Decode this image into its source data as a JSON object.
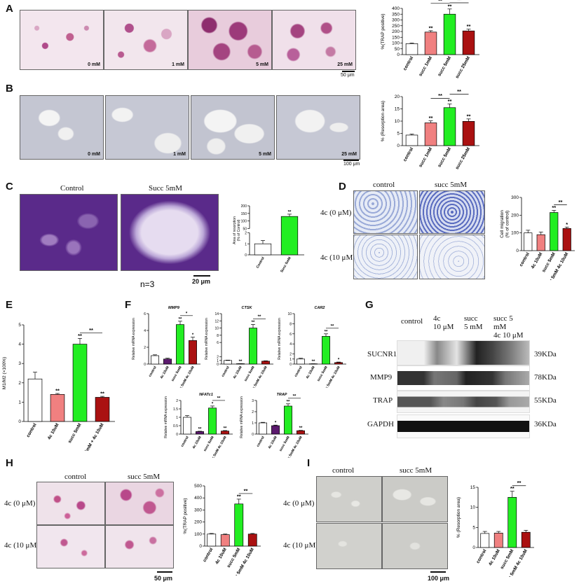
{
  "panels": {
    "A": {
      "label": "A",
      "images": [
        "0 mM",
        "1 mM",
        "5 mM",
        "25 mM"
      ],
      "scalebar": "50 μm"
    },
    "B": {
      "label": "B",
      "images": [
        "0 mM",
        "1 mM",
        "5 mM",
        "25 mM"
      ],
      "scalebar": "100 μm"
    },
    "C": {
      "label": "C",
      "headers": [
        "Control",
        "Succ 5mM"
      ],
      "scalebar": "20 μm",
      "note": "n=3"
    },
    "D": {
      "label": "D",
      "headers": [
        "control",
        "succ 5mM"
      ],
      "rows": [
        "4c (0 μM)",
        "4c (10 μM)"
      ]
    },
    "E": {
      "label": "E"
    },
    "F": {
      "label": "F"
    },
    "G": {
      "label": "G",
      "headers": [
        "control",
        "4c\n10 μM",
        "succ\n5 mM",
        "succ 5\nmM\n4c 10 μM"
      ],
      "bands": [
        {
          "name": "SUCNR1",
          "kda": "39KDa"
        },
        {
          "name": "MMP9",
          "kda": "78KDa"
        },
        {
          "name": "TRAP",
          "kda": "55KDa"
        },
        {
          "name": "GAPDH",
          "kda": "36KDa"
        }
      ]
    },
    "H": {
      "label": "H",
      "headers": [
        "control",
        "succ 5mM"
      ],
      "rows": [
        "4c (0 μM)",
        "4c (10 μM)"
      ],
      "scalebar": "50 μm"
    },
    "I": {
      "label": "I",
      "headers": [
        "control",
        "succ 5mM"
      ],
      "rows": [
        "4c (0 μM)",
        "4c (10 μM)"
      ],
      "scalebar": "100 μm"
    }
  },
  "chart_data": [
    {
      "id": "A",
      "type": "bar",
      "ylabel": "%(TRAP positive)",
      "ylim": [
        0,
        400
      ],
      "yticks": [
        0,
        50,
        100,
        150,
        200,
        250,
        300,
        350,
        400
      ],
      "categories": [
        "control",
        "succ 1mM",
        "succ 5mM",
        "succ 25mM"
      ],
      "values": [
        95,
        195,
        350,
        205
      ],
      "errors": [
        5,
        12,
        45,
        15
      ],
      "colors": [
        "#ffffff",
        "#f08080",
        "#22ee22",
        "#aa1111"
      ],
      "stars": [
        "",
        "**",
        "**",
        "**"
      ],
      "brackets": [
        {
          "from": 1,
          "to": 2,
          "label": "**"
        },
        {
          "from": 2,
          "to": 3,
          "label": "**"
        }
      ]
    },
    {
      "id": "B",
      "type": "bar",
      "ylabel": "% (Resorption area)",
      "ylim": [
        0,
        20
      ],
      "yticks": [
        0,
        5,
        10,
        15,
        20
      ],
      "categories": [
        "control",
        "succ 1mM",
        "succ 5mM",
        "succ 25mM"
      ],
      "values": [
        4.3,
        9.3,
        15.5,
        9.9
      ],
      "errors": [
        0.4,
        0.8,
        1.5,
        1.0
      ],
      "colors": [
        "#ffffff",
        "#f08080",
        "#22ee22",
        "#aa1111"
      ],
      "stars": [
        "",
        "**",
        "**",
        "**"
      ],
      "brackets": [
        {
          "from": 1,
          "to": 2,
          "label": "**"
        },
        {
          "from": 2,
          "to": 3,
          "label": "**"
        }
      ]
    },
    {
      "id": "C",
      "type": "bar",
      "ylabel": "Area of resorption\n(% of Control)",
      "broken": true,
      "yticks_low": [
        0,
        1,
        2
      ],
      "yticks_high": [
        50,
        100,
        150,
        200
      ],
      "categories": [
        "Control",
        "Succ 5mM"
      ],
      "values": [
        1,
        130
      ],
      "errors": [
        0.3,
        15
      ],
      "colors": [
        "#ffffff",
        "#22ee22"
      ],
      "stars": [
        "",
        "**"
      ]
    },
    {
      "id": "D",
      "type": "bar",
      "ylabel": "Cell migration\n(% of control)",
      "ylim": [
        0,
        300
      ],
      "yticks": [
        0,
        100,
        200,
        300
      ],
      "categories": [
        "control",
        "4c 10uM",
        "succ 5mM",
        "succ 5mM 4c 10uM"
      ],
      "values": [
        100,
        90,
        215,
        125
      ],
      "errors": [
        15,
        15,
        12,
        8
      ],
      "colors": [
        "#ffffff",
        "#f08080",
        "#22ee22",
        "#aa1111"
      ],
      "stars": [
        "",
        "",
        "**",
        "*"
      ],
      "brackets": [
        {
          "from": 2,
          "to": 3,
          "label": "**"
        }
      ]
    },
    {
      "id": "E",
      "type": "bar",
      "ylabel": "M1/M2 (×100%)",
      "ylim": [
        0,
        5
      ],
      "yticks": [
        0,
        1,
        2,
        3,
        4,
        5
      ],
      "categories": [
        "control",
        "4c 10uM",
        "succ 5mM",
        "succ 5mM + 4c 10uM"
      ],
      "values": [
        2.2,
        1.4,
        4.0,
        1.25
      ],
      "errors": [
        0.35,
        0.05,
        0.3,
        0.05
      ],
      "colors": [
        "#ffffff",
        "#f08080",
        "#22ee22",
        "#aa1111"
      ],
      "stars": [
        "",
        "**",
        "**",
        "**"
      ],
      "brackets": [
        {
          "from": 2,
          "to": 3,
          "label": "**"
        }
      ]
    },
    {
      "id": "F1",
      "type": "bar",
      "title": "MMP9",
      "ylabel": "Relative mRNA expression",
      "ylim": [
        0,
        6
      ],
      "yticks": [
        0,
        2,
        4,
        6
      ],
      "categories": [
        "control",
        "4c 10uM",
        "succ 5mM",
        "succ 5mM 4c 10uM"
      ],
      "values": [
        1.0,
        0.6,
        4.7,
        2.8
      ],
      "errors": [
        0.1,
        0.1,
        0.4,
        0.4
      ],
      "colors": [
        "#ffffff",
        "#5c1a6e",
        "#22ee22",
        "#aa1111"
      ],
      "stars": [
        "",
        "",
        "**",
        "*"
      ],
      "brackets": [
        {
          "from": 2,
          "to": 3,
          "label": "*"
        }
      ]
    },
    {
      "id": "F2",
      "type": "bar",
      "title": "CTSK",
      "ylabel": "Relative mRNA expression",
      "ylim": [
        0,
        14
      ],
      "yticks": [
        0,
        1,
        2,
        6,
        8,
        10,
        12,
        14
      ],
      "categories": [
        "control",
        "4c 10uM",
        "succ 5mM",
        "succ 5mM 4c 10uM"
      ],
      "values": [
        1.0,
        0.1,
        10.0,
        0.8
      ],
      "errors": [
        0.1,
        0.02,
        1.0,
        0.1
      ],
      "colors": [
        "#ffffff",
        "#5c1a6e",
        "#22ee22",
        "#aa1111"
      ],
      "stars": [
        "",
        "**",
        "**",
        ""
      ],
      "brackets": [
        {
          "from": 2,
          "to": 3,
          "label": "**"
        }
      ]
    },
    {
      "id": "F3",
      "type": "bar",
      "title": "CAR2",
      "ylabel": "Relative mRNA expression",
      "ylim": [
        0,
        10
      ],
      "yticks": [
        0,
        1,
        2,
        4,
        6,
        8,
        10
      ],
      "categories": [
        "control",
        "4c 10uM",
        "succ 5mM",
        "succ 5mM 4c 10uM"
      ],
      "values": [
        1.0,
        0.05,
        5.5,
        0.3
      ],
      "errors": [
        0.15,
        0.01,
        0.5,
        0.1
      ],
      "colors": [
        "#ffffff",
        "#5c1a6e",
        "#22ee22",
        "#aa1111"
      ],
      "stars": [
        "",
        "**",
        "**",
        "*"
      ],
      "brackets": [
        {
          "from": 2,
          "to": 3,
          "label": "**"
        }
      ]
    },
    {
      "id": "F4",
      "type": "bar",
      "title": "NFATc1",
      "ylabel": "Relative mRNA expression",
      "ylim": [
        0,
        2.0
      ],
      "yticks": [
        0.0,
        0.5,
        1.0,
        1.5,
        2.0
      ],
      "categories": [
        "control",
        "4c 10uM",
        "succ 5mM",
        "succ 5mM 4c 10uM"
      ],
      "values": [
        1.0,
        0.15,
        1.55,
        0.18
      ],
      "errors": [
        0.1,
        0.02,
        0.12,
        0.03
      ],
      "colors": [
        "#ffffff",
        "#5c1a6e",
        "#22ee22",
        "#aa1111"
      ],
      "stars": [
        "",
        "**",
        "*",
        "**"
      ],
      "brackets": [
        {
          "from": 2,
          "to": 3,
          "label": "**"
        }
      ]
    },
    {
      "id": "F5",
      "type": "bar",
      "title": "TRAP",
      "ylabel": "Relative mRNA expression",
      "ylim": [
        0,
        3
      ],
      "yticks": [
        0,
        1,
        2,
        3
      ],
      "categories": [
        "control",
        "4c 10uM",
        "succ 5mM",
        "succ 5mM 4c 10uM"
      ],
      "values": [
        1.0,
        0.75,
        2.5,
        0.3
      ],
      "errors": [
        0.05,
        0.05,
        0.2,
        0.03
      ],
      "colors": [
        "#ffffff",
        "#5c1a6e",
        "#22ee22",
        "#aa1111"
      ],
      "stars": [
        "",
        "*",
        "**",
        "**"
      ],
      "brackets": [
        {
          "from": 2,
          "to": 3,
          "label": "**"
        }
      ]
    },
    {
      "id": "H",
      "type": "bar",
      "ylabel": "%(TRAP positive)",
      "ylim": [
        0,
        500
      ],
      "yticks": [
        0,
        100,
        200,
        300,
        400,
        500
      ],
      "categories": [
        "control",
        "4c 10uM",
        "succ 5mM",
        "succ 5mM 4c 10uM"
      ],
      "values": [
        100,
        95,
        350,
        100
      ],
      "errors": [
        5,
        5,
        40,
        5
      ],
      "colors": [
        "#ffffff",
        "#f08080",
        "#22ee22",
        "#aa1111"
      ],
      "stars": [
        "",
        "",
        "**",
        ""
      ],
      "brackets": [
        {
          "from": 2,
          "to": 3,
          "label": "**"
        }
      ]
    },
    {
      "id": "I",
      "type": "bar",
      "ylabel": "% (Resorption area)",
      "ylim": [
        0,
        15
      ],
      "yticks": [
        0,
        5,
        10,
        15
      ],
      "categories": [
        "control",
        "4c 10uM",
        "succ 5mM",
        "succ 5mM 4c 10uM"
      ],
      "values": [
        3.5,
        3.6,
        12.5,
        3.8
      ],
      "errors": [
        0.5,
        0.4,
        1.5,
        0.5
      ],
      "colors": [
        "#ffffff",
        "#f08080",
        "#22ee22",
        "#aa1111"
      ],
      "stars": [
        "",
        "",
        "**",
        ""
      ],
      "brackets": [
        {
          "from": 2,
          "to": 3,
          "label": "**"
        }
      ]
    }
  ]
}
